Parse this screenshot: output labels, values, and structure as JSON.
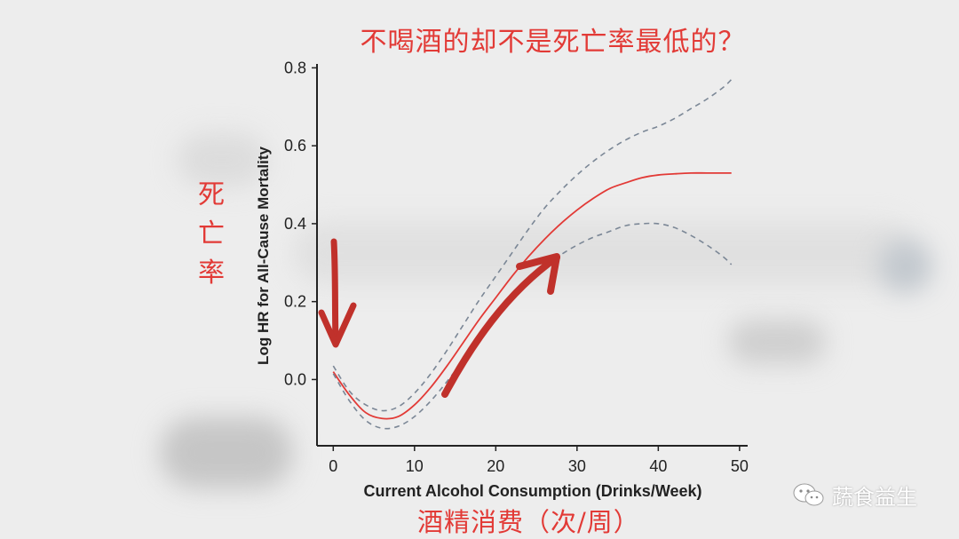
{
  "annotations": {
    "title": "不喝酒的却不是死亡率最低的？",
    "y_cn": "死亡率",
    "x_cn": "酒精消费（次/周）"
  },
  "watermark": {
    "text": "蔬食益生",
    "icon": "wechat-icon"
  },
  "colors": {
    "accent": "#e23a36",
    "ci": "#7b8796",
    "axis": "#222222",
    "arrow": "#c0312b"
  },
  "chart_data": {
    "type": "line",
    "xlabel": "Current Alcohol Consumption (Drinks/Week)",
    "ylabel": "Log HR for All-Cause Mortality",
    "xlim": [
      -2,
      51
    ],
    "ylim": [
      -0.17,
      0.81
    ],
    "x_ticks": [
      0,
      10,
      20,
      30,
      40,
      50
    ],
    "x_tick_labels": [
      "0",
      "10",
      "20",
      "30",
      "40",
      "50"
    ],
    "y_ticks": [
      0.0,
      0.2,
      0.4,
      0.6,
      0.8
    ],
    "y_tick_labels": [
      "0.0",
      "0.2",
      "0.4",
      "0.6",
      "0.8"
    ],
    "grid": false,
    "series": [
      {
        "style": "solid",
        "x": [
          0,
          2,
          4,
          6,
          8,
          10,
          12,
          14,
          16,
          18,
          20,
          22,
          24,
          26,
          28,
          30,
          32,
          34,
          36,
          38,
          40,
          42,
          44,
          46,
          48,
          49
        ],
        "y": [
          0.02,
          -0.04,
          -0.085,
          -0.1,
          -0.095,
          -0.065,
          -0.02,
          0.035,
          0.095,
          0.155,
          0.21,
          0.265,
          0.315,
          0.36,
          0.4,
          0.435,
          0.465,
          0.49,
          0.505,
          0.518,
          0.525,
          0.528,
          0.53,
          0.53,
          0.53,
          0.53
        ]
      },
      {
        "style": "dashed",
        "x": [
          0,
          2,
          4,
          6,
          8,
          10,
          12,
          14,
          16,
          18,
          20,
          22,
          24,
          26,
          28,
          30,
          32,
          34,
          36,
          38,
          40,
          42,
          44,
          46,
          48,
          49
        ],
        "y": [
          0.035,
          -0.03,
          -0.065,
          -0.08,
          -0.07,
          -0.035,
          0.015,
          0.075,
          0.14,
          0.205,
          0.265,
          0.325,
          0.385,
          0.44,
          0.485,
          0.525,
          0.56,
          0.59,
          0.615,
          0.635,
          0.65,
          0.67,
          0.695,
          0.72,
          0.75,
          0.77
        ]
      },
      {
        "style": "dashed",
        "x": [
          0,
          2,
          4,
          6,
          8,
          10,
          12,
          14,
          16,
          18,
          20,
          22,
          24,
          26,
          28,
          30,
          32,
          34,
          36,
          38,
          40,
          42,
          44,
          46,
          48,
          49
        ],
        "y": [
          0.015,
          -0.055,
          -0.105,
          -0.125,
          -0.12,
          -0.095,
          -0.055,
          -0.005,
          0.05,
          0.105,
          0.16,
          0.21,
          0.255,
          0.29,
          0.32,
          0.345,
          0.365,
          0.38,
          0.395,
          0.4,
          0.4,
          0.39,
          0.37,
          0.345,
          0.315,
          0.295
        ]
      }
    ]
  }
}
